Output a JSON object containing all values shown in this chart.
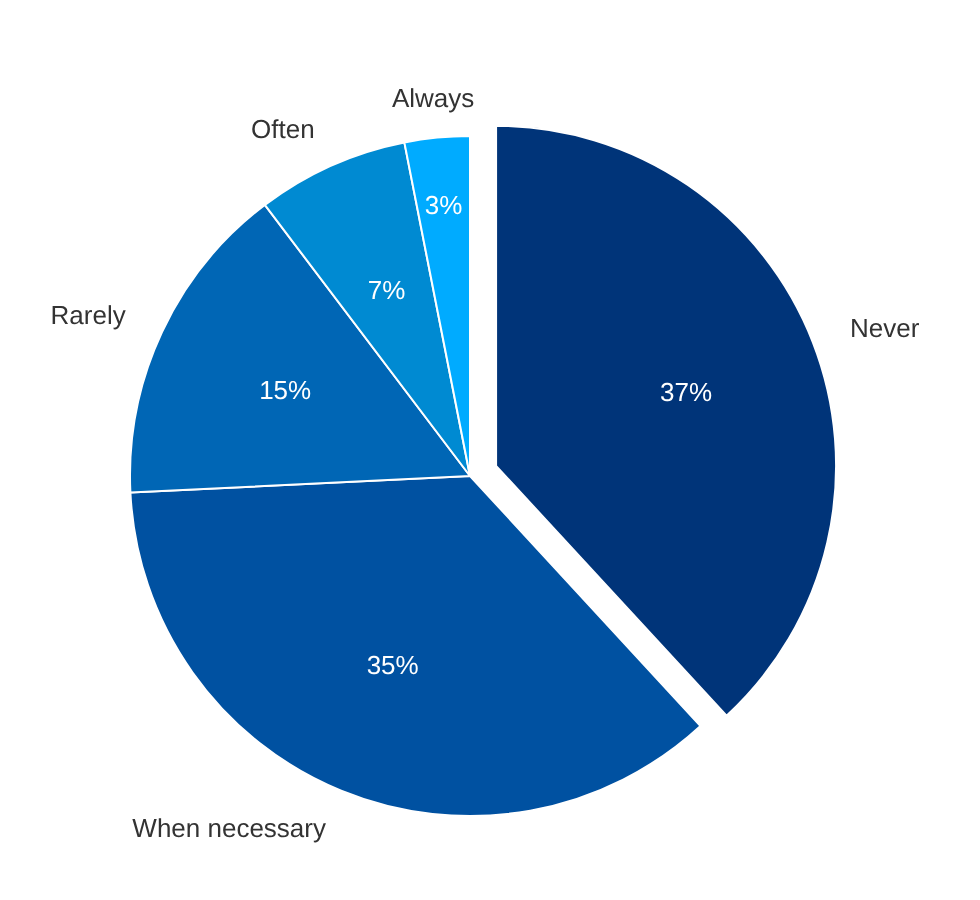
{
  "chart_data": {
    "type": "pie",
    "categories": [
      "Never",
      "When necessary",
      "Rarely",
      "Often",
      "Always"
    ],
    "values": [
      37,
      35,
      15,
      7,
      3
    ],
    "colors": [
      "#003479",
      "#0051a1",
      "#0066b5",
      "#008ad2",
      "#00abff"
    ],
    "value_labels": [
      "37%",
      "35%",
      "15%",
      "7%",
      "3%"
    ],
    "legend": false
  }
}
